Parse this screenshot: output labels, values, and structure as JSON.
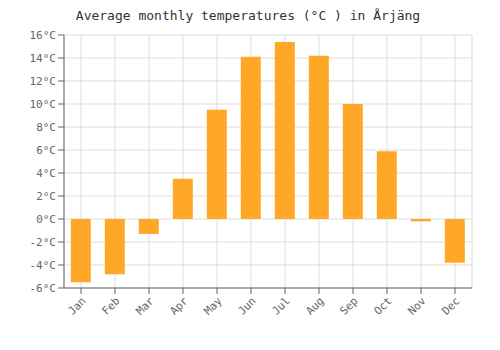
{
  "chart_data": {
    "type": "bar",
    "title": "Average monthly temperatures (°C ) in Årjäng",
    "categories": [
      "Jan",
      "Feb",
      "Mar",
      "Apr",
      "May",
      "Jun",
      "Jul",
      "Aug",
      "Sep",
      "Oct",
      "Nov",
      "Dec"
    ],
    "values": [
      -5.5,
      -4.8,
      -1.3,
      3.5,
      9.5,
      14.1,
      15.4,
      14.2,
      10.0,
      5.9,
      -0.2,
      -3.8
    ],
    "color": "#FFA726",
    "ylim": [
      -6,
      16
    ],
    "yticks": [
      {
        "value": -6,
        "label": "-6°C"
      },
      {
        "value": -4,
        "label": "-4°C"
      },
      {
        "value": -2,
        "label": "-2°C"
      },
      {
        "value": 0,
        "label": "0°C"
      },
      {
        "value": 2,
        "label": "2°C"
      },
      {
        "value": 4,
        "label": "4°C"
      },
      {
        "value": 6,
        "label": "6°C"
      },
      {
        "value": 8,
        "label": "8°C"
      },
      {
        "value": 10,
        "label": "10°C"
      },
      {
        "value": 12,
        "label": "12°C"
      },
      {
        "value": 14,
        "label": "14°C"
      },
      {
        "value": 16,
        "label": "16°C"
      }
    ],
    "grid": true
  }
}
